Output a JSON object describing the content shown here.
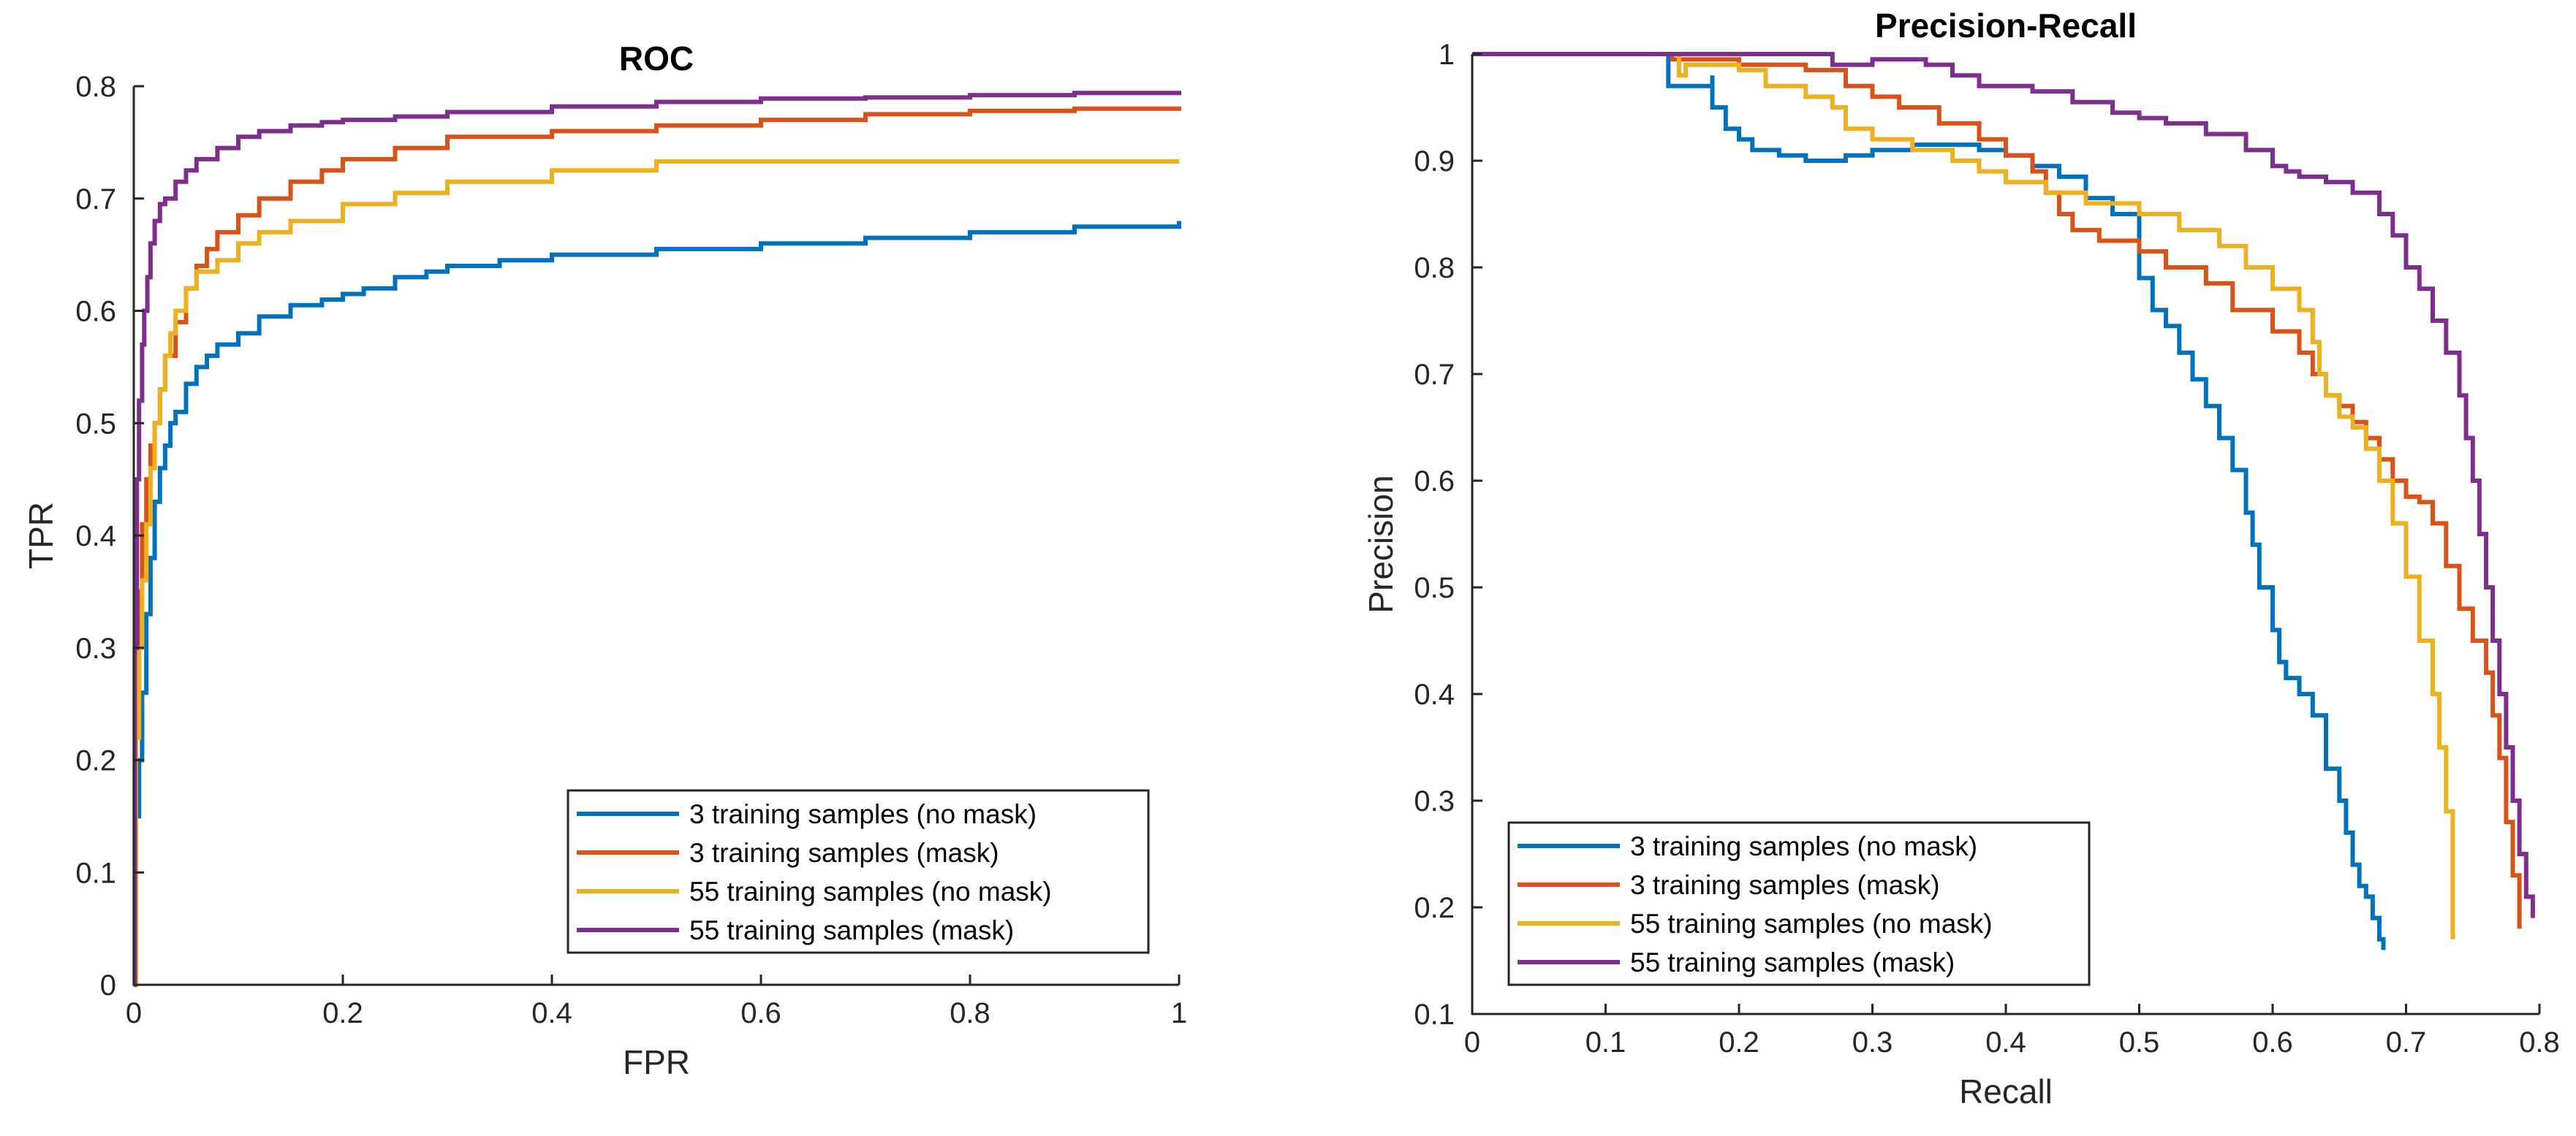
{
  "colors": {
    "blue": "#0072BD",
    "orange": "#D95319",
    "yellow": "#EDB120",
    "purple": "#7E2F8E"
  },
  "chart_data": [
    {
      "type": "line",
      "title": "ROC",
      "xlabel": "FPR",
      "ylabel": "TPR",
      "xlim": [
        0,
        1
      ],
      "ylim": [
        0,
        0.8
      ],
      "xticks": [
        0,
        0.2,
        0.4,
        0.6,
        0.8,
        1
      ],
      "xtick_labels": [
        "0",
        "0.2",
        "0.4",
        "0.6",
        "0.8",
        "1"
      ],
      "yticks": [
        0,
        0.1,
        0.2,
        0.3,
        0.4,
        0.5,
        0.6,
        0.7,
        0.8
      ],
      "ytick_labels": [
        "0",
        "0.1",
        "0.2",
        "0.3",
        "0.4",
        "0.5",
        "0.6",
        "0.7",
        "0.8"
      ],
      "grid": false,
      "legend_position": "bottom-right",
      "series": [
        {
          "name": "3 training samples (no mask)",
          "color": "#0072BD",
          "x": [
            0,
            0.002,
            0.005,
            0.008,
            0.012,
            0.016,
            0.02,
            0.025,
            0.03,
            0.035,
            0.04,
            0.05,
            0.06,
            0.07,
            0.08,
            0.1,
            0.12,
            0.15,
            0.18,
            0.2,
            0.22,
            0.25,
            0.28,
            0.3,
            0.35,
            0.4,
            0.5,
            0.6,
            0.7,
            0.8,
            0.9,
            1.0
          ],
          "y": [
            0,
            0.15,
            0.2,
            0.26,
            0.33,
            0.38,
            0.43,
            0.46,
            0.48,
            0.5,
            0.51,
            0.535,
            0.55,
            0.56,
            0.57,
            0.58,
            0.595,
            0.605,
            0.61,
            0.615,
            0.62,
            0.63,
            0.635,
            0.64,
            0.645,
            0.65,
            0.655,
            0.66,
            0.665,
            0.67,
            0.675,
            0.68
          ]
        },
        {
          "name": "3 training samples (mask)",
          "color": "#D95319",
          "x": [
            0,
            0.002,
            0.005,
            0.008,
            0.012,
            0.016,
            0.02,
            0.025,
            0.03,
            0.04,
            0.05,
            0.06,
            0.07,
            0.08,
            0.1,
            0.12,
            0.15,
            0.18,
            0.2,
            0.25,
            0.3,
            0.4,
            0.5,
            0.6,
            0.7,
            0.8,
            0.9,
            1.0
          ],
          "y": [
            0,
            0.25,
            0.35,
            0.41,
            0.45,
            0.48,
            0.5,
            0.53,
            0.56,
            0.59,
            0.62,
            0.64,
            0.655,
            0.67,
            0.685,
            0.7,
            0.715,
            0.725,
            0.735,
            0.745,
            0.755,
            0.76,
            0.765,
            0.77,
            0.775,
            0.778,
            0.78,
            0.782
          ]
        },
        {
          "name": "55 training samples (no mask)",
          "color": "#EDB120",
          "x": [
            0,
            0.002,
            0.005,
            0.008,
            0.012,
            0.016,
            0.02,
            0.025,
            0.03,
            0.035,
            0.04,
            0.05,
            0.06,
            0.08,
            0.1,
            0.12,
            0.15,
            0.2,
            0.25,
            0.3,
            0.4,
            0.5,
            0.6,
            0.7,
            0.8,
            0.9,
            1.0
          ],
          "y": [
            0,
            0.22,
            0.3,
            0.36,
            0.41,
            0.46,
            0.5,
            0.53,
            0.56,
            0.58,
            0.6,
            0.62,
            0.635,
            0.645,
            0.66,
            0.67,
            0.68,
            0.695,
            0.705,
            0.715,
            0.725,
            0.733,
            0.733,
            0.733,
            0.733,
            0.733,
            0.733
          ]
        },
        {
          "name": "55 training samples (mask)",
          "color": "#7E2F8E",
          "x": [
            0,
            0.001,
            0.003,
            0.005,
            0.008,
            0.01,
            0.013,
            0.016,
            0.02,
            0.025,
            0.03,
            0.04,
            0.05,
            0.06,
            0.08,
            0.1,
            0.12,
            0.15,
            0.18,
            0.2,
            0.25,
            0.3,
            0.4,
            0.5,
            0.6,
            0.7,
            0.8,
            0.9,
            1.0
          ],
          "y": [
            0,
            0.3,
            0.45,
            0.52,
            0.57,
            0.6,
            0.63,
            0.66,
            0.68,
            0.695,
            0.7,
            0.715,
            0.725,
            0.735,
            0.745,
            0.755,
            0.76,
            0.765,
            0.768,
            0.77,
            0.773,
            0.777,
            0.782,
            0.786,
            0.789,
            0.79,
            0.792,
            0.794,
            0.796
          ]
        }
      ]
    },
    {
      "type": "line",
      "title": "Precision-Recall",
      "xlabel": "Recall",
      "ylabel": "Precision",
      "xlim": [
        0,
        0.8
      ],
      "ylim": [
        0.1,
        1
      ],
      "xticks": [
        0,
        0.1,
        0.2,
        0.3,
        0.4,
        0.5,
        0.6,
        0.7,
        0.8
      ],
      "xtick_labels": [
        "0",
        "0.1",
        "0.2",
        "0.3",
        "0.4",
        "0.5",
        "0.6",
        "0.7",
        "0.8"
      ],
      "yticks": [
        0.1,
        0.2,
        0.3,
        0.4,
        0.5,
        0.6,
        0.7,
        0.8,
        0.9,
        1
      ],
      "ytick_labels": [
        "0.1",
        "0.2",
        "0.3",
        "0.4",
        "0.5",
        "0.6",
        "0.7",
        "0.8",
        "0.9",
        "1"
      ],
      "grid": false,
      "legend_position": "bottom-left",
      "series": [
        {
          "name": "3 training samples (no mask)",
          "color": "#0072BD",
          "x": [
            0,
            0.14,
            0.147,
            0.147,
            0.18,
            0.18,
            0.19,
            0.2,
            0.21,
            0.23,
            0.25,
            0.28,
            0.3,
            0.33,
            0.36,
            0.38,
            0.4,
            0.42,
            0.44,
            0.46,
            0.48,
            0.5,
            0.5,
            0.51,
            0.52,
            0.53,
            0.54,
            0.55,
            0.56,
            0.57,
            0.58,
            0.585,
            0.59,
            0.6,
            0.605,
            0.61,
            0.62,
            0.63,
            0.64,
            0.65,
            0.655,
            0.66,
            0.665,
            0.67,
            0.675,
            0.68,
            0.683
          ],
          "y": [
            1,
            1,
            0.99,
            0.97,
            0.98,
            0.95,
            0.93,
            0.92,
            0.91,
            0.905,
            0.9,
            0.905,
            0.91,
            0.915,
            0.915,
            0.91,
            0.905,
            0.895,
            0.885,
            0.865,
            0.85,
            0.83,
            0.79,
            0.76,
            0.745,
            0.72,
            0.695,
            0.67,
            0.64,
            0.61,
            0.57,
            0.54,
            0.5,
            0.46,
            0.43,
            0.415,
            0.4,
            0.38,
            0.33,
            0.3,
            0.27,
            0.24,
            0.22,
            0.21,
            0.19,
            0.17,
            0.16
          ]
        },
        {
          "name": "3 training samples (mask)",
          "color": "#D95319",
          "x": [
            0,
            0.15,
            0.15,
            0.2,
            0.25,
            0.28,
            0.3,
            0.32,
            0.35,
            0.38,
            0.4,
            0.42,
            0.43,
            0.44,
            0.45,
            0.47,
            0.5,
            0.52,
            0.55,
            0.57,
            0.6,
            0.62,
            0.63,
            0.64,
            0.65,
            0.66,
            0.67,
            0.68,
            0.69,
            0.7,
            0.71,
            0.72,
            0.73,
            0.74,
            0.75,
            0.76,
            0.765,
            0.77,
            0.775,
            0.78,
            0.785
          ],
          "y": [
            1,
            1,
            0.995,
            0.99,
            0.985,
            0.97,
            0.96,
            0.95,
            0.935,
            0.92,
            0.905,
            0.89,
            0.87,
            0.85,
            0.835,
            0.825,
            0.815,
            0.8,
            0.785,
            0.76,
            0.74,
            0.72,
            0.7,
            0.68,
            0.67,
            0.655,
            0.64,
            0.62,
            0.6,
            0.585,
            0.58,
            0.56,
            0.52,
            0.48,
            0.45,
            0.42,
            0.38,
            0.34,
            0.28,
            0.23,
            0.18
          ]
        },
        {
          "name": "55 training samples (no mask)",
          "color": "#EDB120",
          "x": [
            0,
            0.155,
            0.155,
            0.16,
            0.2,
            0.22,
            0.25,
            0.27,
            0.28,
            0.3,
            0.33,
            0.36,
            0.38,
            0.4,
            0.43,
            0.46,
            0.5,
            0.53,
            0.56,
            0.58,
            0.6,
            0.62,
            0.63,
            0.635,
            0.64,
            0.65,
            0.66,
            0.67,
            0.68,
            0.69,
            0.7,
            0.71,
            0.72,
            0.725,
            0.73,
            0.735
          ],
          "y": [
            1,
            1,
            0.98,
            0.99,
            0.985,
            0.97,
            0.96,
            0.95,
            0.93,
            0.92,
            0.91,
            0.9,
            0.89,
            0.88,
            0.87,
            0.86,
            0.85,
            0.835,
            0.82,
            0.8,
            0.78,
            0.76,
            0.73,
            0.7,
            0.68,
            0.66,
            0.65,
            0.63,
            0.6,
            0.56,
            0.51,
            0.45,
            0.4,
            0.35,
            0.29,
            0.17
          ]
        },
        {
          "name": "55 training samples (mask)",
          "color": "#7E2F8E",
          "x": [
            0,
            0.2,
            0.27,
            0.3,
            0.34,
            0.36,
            0.38,
            0.42,
            0.45,
            0.48,
            0.5,
            0.52,
            0.55,
            0.58,
            0.6,
            0.61,
            0.62,
            0.64,
            0.66,
            0.68,
            0.69,
            0.7,
            0.71,
            0.72,
            0.73,
            0.74,
            0.745,
            0.75,
            0.755,
            0.76,
            0.765,
            0.77,
            0.775,
            0.78,
            0.785,
            0.79,
            0.795
          ],
          "y": [
            1,
            1,
            0.99,
            0.995,
            0.99,
            0.98,
            0.97,
            0.965,
            0.955,
            0.945,
            0.94,
            0.935,
            0.925,
            0.91,
            0.895,
            0.89,
            0.885,
            0.88,
            0.87,
            0.85,
            0.83,
            0.8,
            0.78,
            0.75,
            0.72,
            0.68,
            0.64,
            0.6,
            0.55,
            0.5,
            0.45,
            0.4,
            0.35,
            0.3,
            0.25,
            0.21,
            0.19
          ]
        }
      ]
    }
  ]
}
